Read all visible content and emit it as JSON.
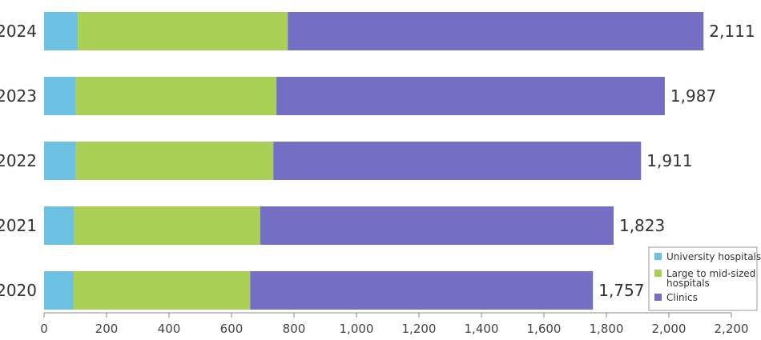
{
  "chart_data": {
    "type": "bar",
    "orientation": "horizontal",
    "stacked": true,
    "categories": [
      "2024",
      "2023",
      "2022",
      "2021",
      "2020"
    ],
    "series": [
      {
        "name": "University hospitals",
        "color": "#6cc1e3",
        "values": [
          108,
          102,
          102,
          97,
          95
        ]
      },
      {
        "name": "Large to mid-sized hospitals",
        "color": "#a9d054",
        "values": [
          672,
          642,
          632,
          595,
          565
        ]
      },
      {
        "name": "Clinics",
        "color": "#746ec4",
        "values": [
          1331,
          1243,
          1177,
          1131,
          1097
        ]
      }
    ],
    "totals": [
      "2,111",
      "1,987",
      "1,911",
      "1,823",
      "1,757"
    ],
    "xlim": [
      0,
      2200
    ],
    "xticks": [
      0,
      200,
      400,
      600,
      800,
      1000,
      1200,
      1400,
      1600,
      1800,
      2000,
      2200
    ],
    "xtick_labels": [
      "0",
      "200",
      "400",
      "600",
      "800",
      "1,000",
      "1,200",
      "1,400",
      "1,600",
      "1,800",
      "2,000",
      "2,200"
    ],
    "legend_position": "bottom-right",
    "legend_lines": [
      [
        "University hospitals"
      ],
      [
        "Large to mid-sized",
        "hospitals"
      ],
      [
        "Clinics"
      ]
    ],
    "grid": false
  }
}
